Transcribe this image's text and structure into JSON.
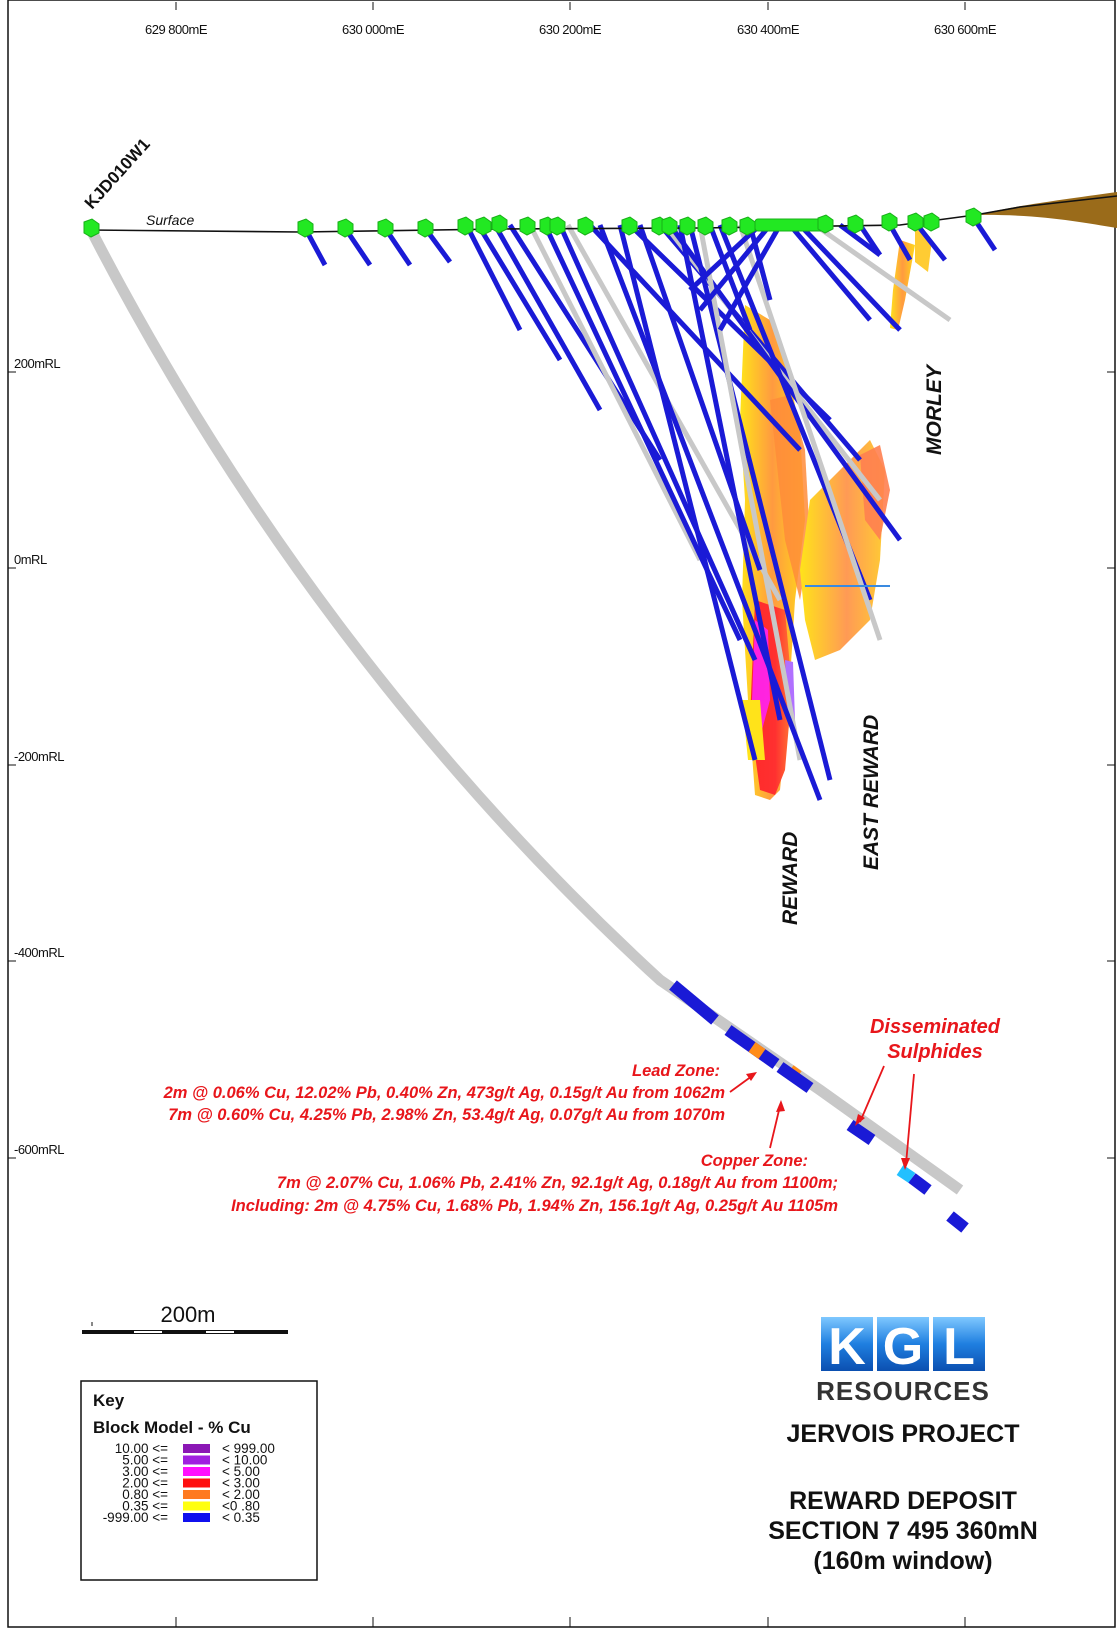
{
  "map": {
    "easting_labels": [
      "629 800mE",
      "630 000mE",
      "630 200mE",
      "630 400mE",
      "630 600mE"
    ],
    "rl_labels": [
      "200mRL",
      "0mRL",
      "-200mRL",
      "-400mRL",
      "-600mRL"
    ],
    "surface_label": "Surface",
    "drillhole_label": "KJD010W1",
    "zone_labels": {
      "morley": "MORLEY",
      "east_reward": "EAST REWARD",
      "reward": "REWARD"
    },
    "annotations": {
      "disseminated_line1": "Disseminated",
      "disseminated_line2": "Sulphides",
      "lead_zone_title": "Lead Zone:",
      "lead_zone_line1": "2m @ 0.06% Cu, 12.02% Pb, 0.40% Zn, 473g/t Ag, 0.15g/t Au from 1062m",
      "lead_zone_line2": "7m @ 0.60% Cu, 4.25% Pb, 2.98% Zn, 53.4g/t Ag, 0.07g/t Au from 1070m",
      "copper_zone_title": "Copper Zone:",
      "copper_zone_line1": "7m @ 2.07% Cu, 1.06% Pb, 2.41% Zn, 92.1g/t Ag, 0.18g/t Au from 1100m;",
      "copper_zone_line2": "Including: 2m @ 4.75% Cu, 1.68% Pb, 1.94% Zn, 156.1g/t Ag, 0.25g/t Au 1105m"
    },
    "scale_bar_label": "200m",
    "key": {
      "title": "Key",
      "subtitle": "Block Model - % Cu",
      "rows": [
        {
          "from": "10.00 <=",
          "to": "< 999.00",
          "color": "#8b17b5"
        },
        {
          "from": "5.00 <=",
          "to": "< 10.00",
          "color": "#a020e0"
        },
        {
          "from": "3.00 <=",
          "to": "< 5.00",
          "color": "#ff10ff"
        },
        {
          "from": "2.00 <=",
          "to": "< 3.00",
          "color": "#ff1010"
        },
        {
          "from": "0.80 <=",
          "to": "< 2.00",
          "color": "#ff7a20"
        },
        {
          "from": "0.35 <=",
          "to": "<0 .80",
          "color": "#ffff10"
        },
        {
          "from": "-999.00 <=",
          "to": "< 0.35",
          "color": "#1010ee"
        }
      ]
    },
    "logo": {
      "letters": [
        "K",
        "G",
        "L"
      ],
      "company": "RESOURCES"
    },
    "title_block": {
      "project": "JERVOIS PROJECT",
      "line1": "REWARD DEPOSIT",
      "line2": "SECTION 7 495 360mN",
      "line3": "(160m window)"
    },
    "colors": {
      "drill_blue": "#1a1ad6",
      "drill_grey": "#c8c8c8",
      "collar_green": "#22e822",
      "annotation_red": "#e8161b",
      "topography_brown": "#9a6b1a"
    }
  }
}
